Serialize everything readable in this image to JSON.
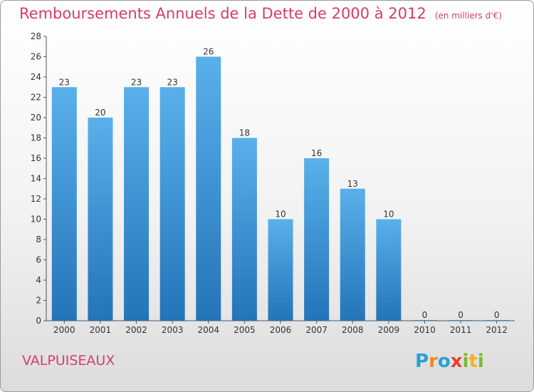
{
  "chart_data": {
    "type": "bar",
    "title": "Remboursements Annuels de la Dette de 2000 à 2012",
    "subtitle": "(en milliers d'€)",
    "categories": [
      "2000",
      "2001",
      "2002",
      "2003",
      "2004",
      "2005",
      "2006",
      "2007",
      "2008",
      "2009",
      "2010",
      "2011",
      "2012"
    ],
    "values": [
      23,
      20,
      23,
      23,
      26,
      18,
      10,
      16,
      13,
      10,
      0,
      0,
      0
    ],
    "xlabel": "",
    "ylabel": "",
    "ylim": [
      0,
      28
    ],
    "yticks": [
      0,
      2,
      4,
      6,
      8,
      10,
      12,
      14,
      16,
      18,
      20,
      22,
      24,
      26,
      28
    ],
    "grid": false,
    "bar_color": "#3d8fd1"
  },
  "commune": "VALPUISEAUX",
  "logo": {
    "text": "Proxiti",
    "letters": [
      {
        "ch": "P",
        "color": "#2a9fd8"
      },
      {
        "ch": "r",
        "color": "#f08a1c"
      },
      {
        "ch": "o",
        "color": "#2a9fd8"
      },
      {
        "ch": "x",
        "color": "#e83e2b"
      },
      {
        "ch": "i",
        "color": "#7cb82f"
      },
      {
        "ch": "t",
        "color": "#f0b51c"
      },
      {
        "ch": "i",
        "color": "#7cb82f"
      }
    ]
  }
}
